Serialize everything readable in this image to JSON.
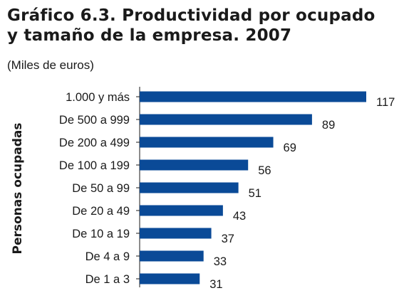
{
  "chart_data": {
    "type": "bar",
    "orientation": "horizontal",
    "title_line1": "Gráfico 6.3. Productividad por ocupado",
    "title_line2": "y tamaño de la empresa. 2007",
    "subtitle": "(Miles de euros)",
    "ylabel": "Personas ocupadas",
    "xlabel": "",
    "categories": [
      "1.000 y más",
      "De 500 a 999",
      "De 200 a 499",
      "De 100 a 199",
      "De 50 a 99",
      "De 20 a 49",
      "De 10 a 19",
      "De 4 a 9",
      "De 1 a 3"
    ],
    "values": [
      117,
      89,
      69,
      56,
      51,
      43,
      37,
      33,
      31
    ],
    "xlim": [
      0,
      117
    ],
    "grid": false,
    "legend": "none",
    "bar_color": "#0a4a97"
  }
}
